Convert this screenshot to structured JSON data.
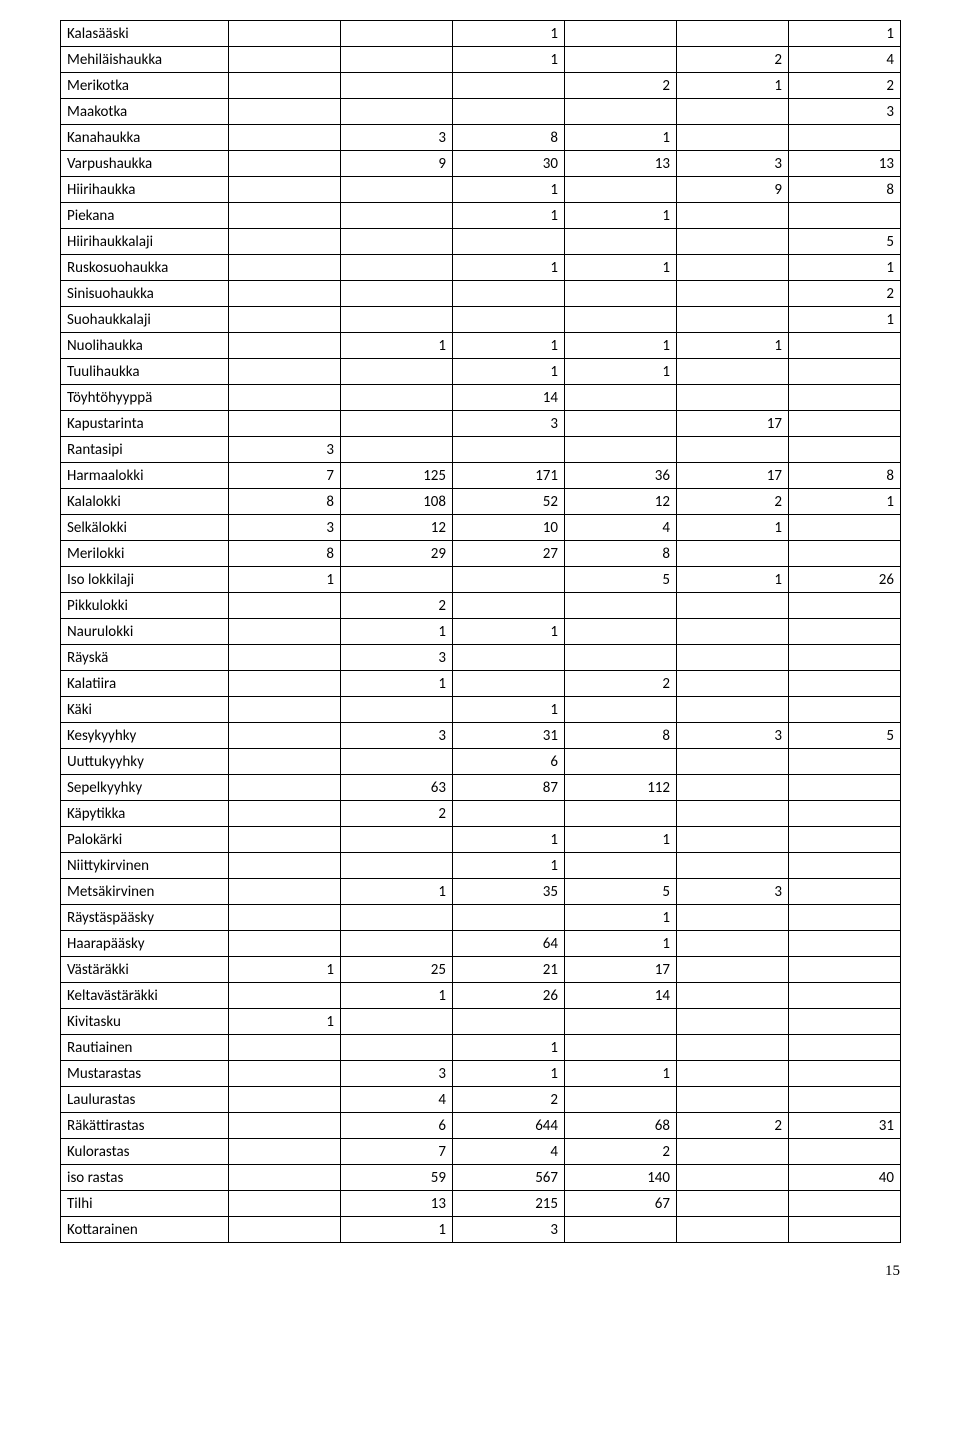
{
  "page_number": "15",
  "columns": 7,
  "rows": [
    {
      "label": "Kalasääski",
      "cells": [
        "",
        "",
        "1",
        "",
        "",
        "1"
      ]
    },
    {
      "label": "Mehiläishaukka",
      "cells": [
        "",
        "",
        "1",
        "",
        "2",
        "4"
      ]
    },
    {
      "label": "Merikotka",
      "cells": [
        "",
        "",
        "",
        "2",
        "1",
        "2"
      ]
    },
    {
      "label": "Maakotka",
      "cells": [
        "",
        "",
        "",
        "",
        "",
        "3"
      ]
    },
    {
      "label": "Kanahaukka",
      "cells": [
        "",
        "3",
        "8",
        "1",
        "",
        ""
      ]
    },
    {
      "label": "Varpushaukka",
      "cells": [
        "",
        "9",
        "30",
        "13",
        "3",
        "13"
      ]
    },
    {
      "label": "Hiirihaukka",
      "cells": [
        "",
        "",
        "1",
        "",
        "9",
        "8"
      ]
    },
    {
      "label": "Piekana",
      "cells": [
        "",
        "",
        "1",
        "1",
        "",
        ""
      ]
    },
    {
      "label": "Hiirihaukkalaji",
      "cells": [
        "",
        "",
        "",
        "",
        "",
        "5"
      ]
    },
    {
      "label": "Ruskosuohaukka",
      "cells": [
        "",
        "",
        "1",
        "1",
        "",
        "1"
      ]
    },
    {
      "label": "Sinisuohaukka",
      "cells": [
        "",
        "",
        "",
        "",
        "",
        "2"
      ]
    },
    {
      "label": "Suohaukkalaji",
      "cells": [
        "",
        "",
        "",
        "",
        "",
        "1"
      ]
    },
    {
      "label": "Nuolihaukka",
      "cells": [
        "",
        "1",
        "1",
        "1",
        "1",
        ""
      ]
    },
    {
      "label": "Tuulihaukka",
      "cells": [
        "",
        "",
        "1",
        "1",
        "",
        ""
      ]
    },
    {
      "label": "Töyhtöhyyppä",
      "cells": [
        "",
        "",
        "14",
        "",
        "",
        ""
      ]
    },
    {
      "label": "Kapustarinta",
      "cells": [
        "",
        "",
        "3",
        "",
        "17",
        ""
      ]
    },
    {
      "label": "Rantasipi",
      "cells": [
        "3",
        "",
        "",
        "",
        "",
        ""
      ]
    },
    {
      "label": "Harmaalokki",
      "cells": [
        "7",
        "125",
        "171",
        "36",
        "17",
        "8"
      ]
    },
    {
      "label": "Kalalokki",
      "cells": [
        "8",
        "108",
        "52",
        "12",
        "2",
        "1"
      ]
    },
    {
      "label": "Selkälokki",
      "cells": [
        "3",
        "12",
        "10",
        "4",
        "1",
        ""
      ]
    },
    {
      "label": "Merilokki",
      "cells": [
        "8",
        "29",
        "27",
        "8",
        "",
        ""
      ]
    },
    {
      "label": "Iso lokkilaji",
      "cells": [
        "1",
        "",
        "",
        "5",
        "1",
        "26"
      ]
    },
    {
      "label": "Pikkulokki",
      "cells": [
        "",
        "2",
        "",
        "",
        "",
        ""
      ]
    },
    {
      "label": "Naurulokki",
      "cells": [
        "",
        "1",
        "1",
        "",
        "",
        ""
      ]
    },
    {
      "label": "Räyskä",
      "cells": [
        "",
        "3",
        "",
        "",
        "",
        ""
      ]
    },
    {
      "label": "Kalatiira",
      "cells": [
        "",
        "1",
        "",
        "2",
        "",
        ""
      ]
    },
    {
      "label": "Käki",
      "cells": [
        "",
        "",
        "1",
        "",
        "",
        ""
      ]
    },
    {
      "label": "Kesykyyhky",
      "cells": [
        "",
        "3",
        "31",
        "8",
        "3",
        "5"
      ]
    },
    {
      "label": "Uuttukyyhky",
      "cells": [
        "",
        "",
        "6",
        "",
        "",
        ""
      ]
    },
    {
      "label": "Sepelkyyhky",
      "cells": [
        "",
        "63",
        "87",
        "112",
        "",
        ""
      ]
    },
    {
      "label": "Käpytikka",
      "cells": [
        "",
        "2",
        "",
        "",
        "",
        ""
      ]
    },
    {
      "label": "Palokärki",
      "cells": [
        "",
        "",
        "1",
        "1",
        "",
        ""
      ]
    },
    {
      "label": "Niittykirvinen",
      "cells": [
        "",
        "",
        "1",
        "",
        "",
        ""
      ]
    },
    {
      "label": "Metsäkirvinen",
      "cells": [
        "",
        "1",
        "35",
        "5",
        "3",
        ""
      ]
    },
    {
      "label": "Räystäspääsky",
      "cells": [
        "",
        "",
        "",
        "1",
        "",
        ""
      ]
    },
    {
      "label": "Haarapääsky",
      "cells": [
        "",
        "",
        "64",
        "1",
        "",
        ""
      ]
    },
    {
      "label": "Västäräkki",
      "cells": [
        "1",
        "25",
        "21",
        "17",
        "",
        ""
      ]
    },
    {
      "label": "Keltavästäräkki",
      "cells": [
        "",
        "1",
        "26",
        "14",
        "",
        ""
      ]
    },
    {
      "label": "Kivitasku",
      "cells": [
        "1",
        "",
        "",
        "",
        "",
        ""
      ]
    },
    {
      "label": "Rautiainen",
      "cells": [
        "",
        "",
        "1",
        "",
        "",
        ""
      ]
    },
    {
      "label": "Mustarastas",
      "cells": [
        "",
        "3",
        "1",
        "1",
        "",
        ""
      ]
    },
    {
      "label": "Laulurastas",
      "cells": [
        "",
        "4",
        "2",
        "",
        "",
        ""
      ]
    },
    {
      "label": "Räkättirastas",
      "cells": [
        "",
        "6",
        "644",
        "68",
        "2",
        "31"
      ]
    },
    {
      "label": "Kulorastas",
      "cells": [
        "",
        "7",
        "4",
        "2",
        "",
        ""
      ]
    },
    {
      "label": "iso rastas",
      "cells": [
        "",
        "59",
        "567",
        "140",
        "",
        "40"
      ]
    },
    {
      "label": "Tilhi",
      "cells": [
        "",
        "13",
        "215",
        "67",
        "",
        ""
      ]
    },
    {
      "label": "Kottarainen",
      "cells": [
        "",
        "1",
        "3",
        "",
        "",
        ""
      ]
    }
  ]
}
